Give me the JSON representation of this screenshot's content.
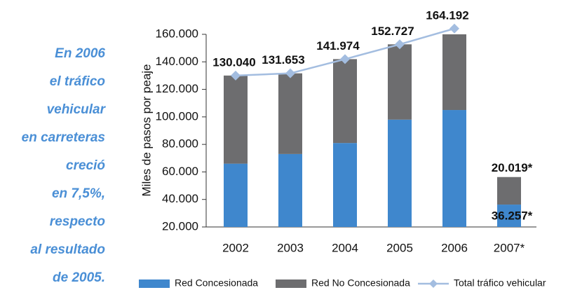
{
  "chart_data": {
    "type": "bar-line",
    "annotation": [
      "En 2006",
      "el tráfico",
      "vehicular",
      "en carreteras",
      "creció",
      "en 7,5%,",
      "respecto",
      "al resultado",
      "de 2005."
    ],
    "y_label": "Miles de pasos por peaje",
    "categories": [
      "2002",
      "2003",
      "2004",
      "2005",
      "2006",
      "2007*"
    ],
    "series": [
      {
        "name": "Red Concesionada",
        "color": "#3f87cd",
        "values": [
          66000,
          73000,
          81000,
          98000,
          105000,
          36257
        ],
        "value_labels": [
          null,
          null,
          null,
          null,
          null,
          "36.257*"
        ]
      },
      {
        "name": "Red No Concesionada",
        "color": "#6d6d6f",
        "values": [
          64040,
          58653,
          60974,
          54727,
          59192,
          20019
        ],
        "value_labels": [
          null,
          null,
          null,
          null,
          null,
          "20.019*"
        ]
      },
      {
        "name": "Total tráfico vehicular",
        "color": "#a3bde0",
        "type": "line",
        "values": [
          130040,
          131653,
          141974,
          152727,
          164192,
          null
        ],
        "value_labels": [
          "130.040",
          "131.653",
          "141.974",
          "152.727",
          "164.192",
          null
        ]
      }
    ],
    "ylim": [
      20000,
      160000
    ],
    "yticks": [
      {
        "value": 20000,
        "label": "20.000"
      },
      {
        "value": 40000,
        "label": "40.000"
      },
      {
        "value": 60000,
        "label": "60.000"
      },
      {
        "value": 80000,
        "label": "80.000"
      },
      {
        "value": 100000,
        "label": "100.000"
      },
      {
        "value": 120000,
        "label": "120.000"
      },
      {
        "value": 140000,
        "label": "140.000"
      },
      {
        "value": 160000,
        "label": "160.000"
      }
    ]
  }
}
